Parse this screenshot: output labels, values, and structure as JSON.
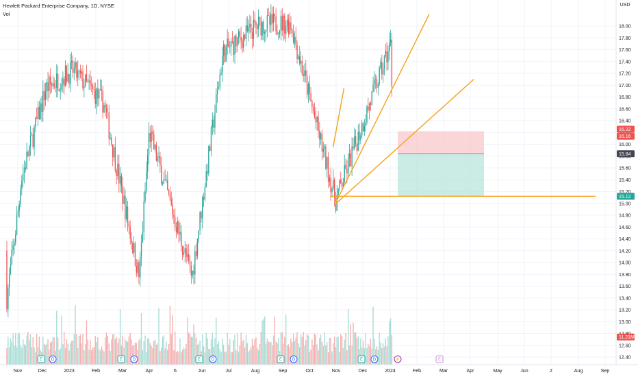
{
  "legend": {
    "title": "Hewlett Packard Enterprise Company, 1D, NYSE",
    "volume_label": "Vol"
  },
  "currency": "USD",
  "colors": {
    "up": "#26a69a",
    "down": "#ef5350",
    "trendline": "#f5a623",
    "stop_zone": "#f8c8cc",
    "target_zone": "#b9e4dc",
    "neutral_tag": "#434651",
    "event_earnings": "#26a69a",
    "event_dividend": "#2962ff",
    "event_future": "#ce93d8",
    "event_split": "#9c27b0"
  },
  "chart_data": {
    "type": "candlestick",
    "ylim": [
      12.3,
      18.2
    ],
    "y_ticks": [
      "18.00",
      "17.80",
      "17.60",
      "17.40",
      "17.20",
      "17.00",
      "16.80",
      "16.60",
      "16.40",
      "16.20",
      "16.00",
      "15.80",
      "15.60",
      "15.40",
      "15.20",
      "15.00",
      "14.80",
      "14.60",
      "14.40",
      "14.20",
      "14.00",
      "13.80",
      "13.60",
      "13.40",
      "13.20",
      "13.00",
      "12.80",
      "12.60",
      "12.40"
    ],
    "x_ticks": [
      "Nov",
      "Dec",
      "2023",
      "Feb",
      "Mar",
      "Apr",
      "6",
      "Jun",
      "Jul",
      "Aug",
      "Sep",
      "Oct",
      "Nov",
      "Dec",
      "2024",
      "Feb",
      "Mar",
      "Apr",
      "May",
      "Jun",
      "2",
      "Aug",
      "Sep"
    ],
    "key_prices": [
      {
        "anchor": 18.02,
        "x": "2022-11-01",
        "close": 15.2
      },
      {
        "anchor": 16.95,
        "x": "2022-12-05"
      },
      {
        "anchor": 17.25,
        "x": "2023-01-05"
      },
      {
        "anchor": 16.7,
        "x": "2023-02-10"
      },
      {
        "anchor": 13.75,
        "x": "2023-03-20"
      },
      {
        "anchor": 16.2,
        "x": "2023-04-01"
      },
      {
        "anchor": 13.75,
        "x": "2023-05-20"
      },
      {
        "anchor": 17.55,
        "x": "2023-06-25"
      },
      {
        "anchor": 18.02,
        "x": "2023-08-05"
      },
      {
        "anchor": 18.05,
        "x": "2023-09-10"
      },
      {
        "anchor": 15.05,
        "x": "2023-10-31"
      },
      {
        "anchor": 17.72,
        "x": "2024-01-02"
      },
      {
        "anchor": 16.16,
        "x": "2024-01-04"
      }
    ],
    "price_tags": [
      {
        "label": "16.22",
        "value": 16.22,
        "color": "#ef5350"
      },
      {
        "label": "16.16",
        "value": 16.16,
        "color": "#ef5350"
      },
      {
        "label": "15.84",
        "value": 15.84,
        "color": "#434651"
      },
      {
        "label": "15.12",
        "value": 15.12,
        "color": "#26a69a"
      },
      {
        "label": "11.21M",
        "value": 12.74,
        "color": "#ef5350"
      }
    ],
    "trendlines": [
      {
        "name": "upper-channel",
        "from": [
          14.98,
          "2023-10-30"
        ],
        "to": [
          18.2,
          "2024-02-15"
        ]
      },
      {
        "name": "middle-line",
        "from": [
          14.98,
          "2023-10-30"
        ],
        "to": [
          17.1,
          "2024-04-05"
        ]
      },
      {
        "name": "support-horizontal",
        "value": 15.12
      },
      {
        "name": "left-upper",
        "from": [
          15.95,
          "2023-10-28"
        ],
        "to": [
          16.95,
          "2023-11-10"
        ]
      }
    ],
    "risk_reward": {
      "entry": 15.84,
      "stop": 16.22,
      "target": 15.12
    },
    "events": [
      {
        "type": "E",
        "x": "Nov"
      },
      {
        "type": "D",
        "x": "Dec"
      },
      {
        "type": "E",
        "x": "Mar"
      },
      {
        "type": "D",
        "x": "Mar"
      },
      {
        "type": "E",
        "x": "Jun"
      },
      {
        "type": "D",
        "x": "Jun"
      },
      {
        "type": "E",
        "x": "Sep"
      },
      {
        "type": "D",
        "x": "Sep"
      },
      {
        "type": "E",
        "x": "Dec"
      },
      {
        "type": "D",
        "x": "Dec"
      },
      {
        "type": "split",
        "x": "2024"
      },
      {
        "type": "E",
        "x": "Mar 2024"
      }
    ]
  }
}
